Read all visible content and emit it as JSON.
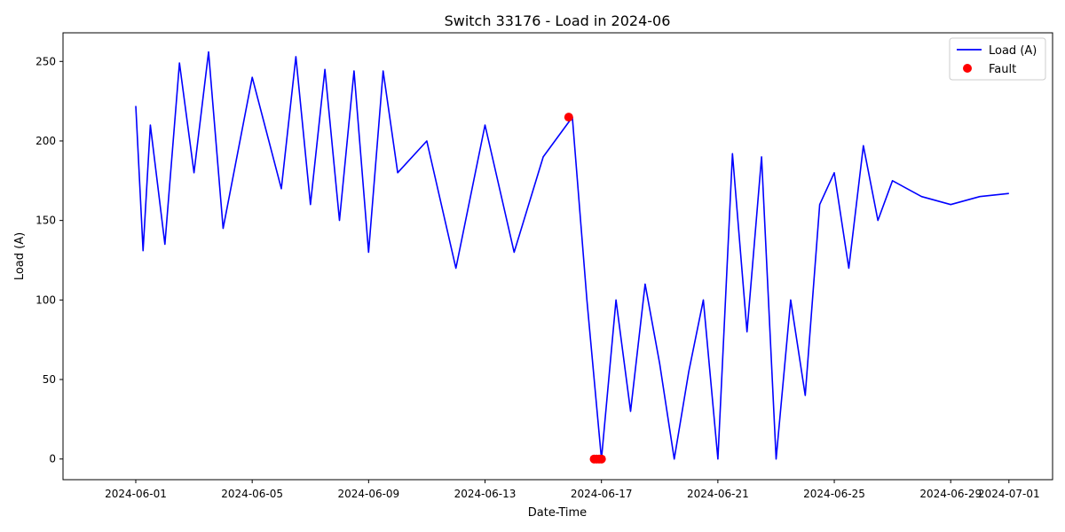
{
  "chart_data": {
    "type": "line",
    "title": "Switch 33176 - Load in 2024-06",
    "xlabel": "Date-Time",
    "ylabel": "Load (A)",
    "x_range": [
      "2024-05-29T12:00",
      "2024-07-02T12:00"
    ],
    "ylim": [
      -13,
      268
    ],
    "grid": false,
    "legend_position": "top-right",
    "x_ticks": [
      "2024-06-01",
      "2024-06-05",
      "2024-06-09",
      "2024-06-13",
      "2024-06-17",
      "2024-06-21",
      "2024-06-25",
      "2024-06-29",
      "2024-07-01"
    ],
    "y_ticks": [
      0,
      50,
      100,
      150,
      200,
      250
    ],
    "series": [
      {
        "name": "Load (A)",
        "kind": "line",
        "color": "#0000ff",
        "note_points": "representative points traced from the plotted line",
        "x": [
          "2024-06-01T00:00",
          "2024-06-01T06:00",
          "2024-06-01T12:00",
          "2024-06-02T00:00",
          "2024-06-02T12:00",
          "2024-06-03T00:00",
          "2024-06-03T12:00",
          "2024-06-04T00:00",
          "2024-06-05T00:00",
          "2024-06-06T00:00",
          "2024-06-06T12:00",
          "2024-06-07T00:00",
          "2024-06-07T12:00",
          "2024-06-08T00:00",
          "2024-06-08T12:00",
          "2024-06-09T00:00",
          "2024-06-09T12:00",
          "2024-06-10T00:00",
          "2024-06-11T00:00",
          "2024-06-12T00:00",
          "2024-06-13T00:00",
          "2024-06-14T00:00",
          "2024-06-15T00:00",
          "2024-06-16T00:00",
          "2024-06-16T12:00",
          "2024-06-17T00:00",
          "2024-06-17T12:00",
          "2024-06-18T00:00",
          "2024-06-18T12:00",
          "2024-06-19T00:00",
          "2024-06-19T12:00",
          "2024-06-20T00:00",
          "2024-06-20T12:00",
          "2024-06-21T00:00",
          "2024-06-21T12:00",
          "2024-06-22T00:00",
          "2024-06-22T12:00",
          "2024-06-23T00:00",
          "2024-06-23T12:00",
          "2024-06-24T00:00",
          "2024-06-24T12:00",
          "2024-06-25T00:00",
          "2024-06-25T12:00",
          "2024-06-26T00:00",
          "2024-06-26T12:00",
          "2024-06-27T00:00",
          "2024-06-28T00:00",
          "2024-06-29T00:00",
          "2024-06-30T00:00",
          "2024-07-01T00:00"
        ],
        "y": [
          222,
          131,
          210,
          135,
          249,
          180,
          256,
          145,
          240,
          170,
          253,
          160,
          245,
          150,
          244,
          130,
          244,
          180,
          200,
          120,
          210,
          130,
          190,
          215,
          100,
          0,
          100,
          30,
          110,
          60,
          0,
          55,
          100,
          0,
          192,
          80,
          190,
          0,
          100,
          40,
          160,
          180,
          120,
          197,
          150,
          175,
          165,
          160,
          165,
          167
        ]
      },
      {
        "name": "Fault",
        "kind": "scatter",
        "color": "#ff0000",
        "x": [
          "2024-06-15T21:00",
          "2024-06-16T18:00",
          "2024-06-16T20:00",
          "2024-06-16T22:00",
          "2024-06-17T00:00"
        ],
        "y": [
          215,
          0,
          0,
          0,
          0
        ]
      }
    ]
  }
}
